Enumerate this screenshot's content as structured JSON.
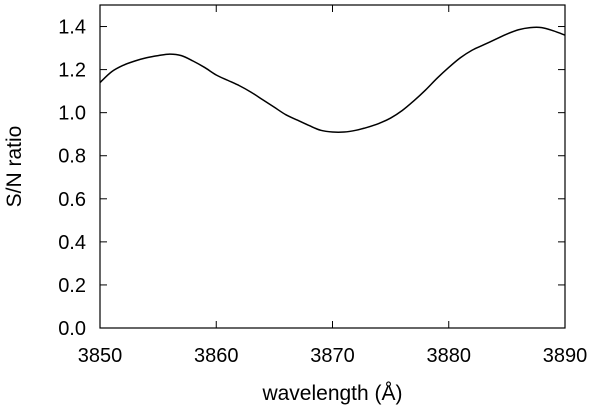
{
  "chart_data": {
    "type": "line",
    "title": "",
    "xlabel": "wavelength (Å)",
    "ylabel": "S/N ratio",
    "xlim": [
      3850,
      3890
    ],
    "ylim": [
      0.0,
      1.5
    ],
    "x_ticks": [
      3850,
      3860,
      3870,
      3880,
      3890
    ],
    "x_tick_labels": [
      "3850",
      "3860",
      "3870",
      "3880",
      "3890"
    ],
    "y_ticks": [
      0.0,
      0.2,
      0.4,
      0.6,
      0.8,
      1.0,
      1.2,
      1.4
    ],
    "y_tick_labels": [
      "0.0",
      "0.2",
      "0.4",
      "0.6",
      "0.8",
      "1.0",
      "1.2",
      "1.4"
    ],
    "grid": false,
    "legend": "none",
    "line_color": "#000000",
    "series": [
      {
        "x": [
          3850,
          3851,
          3852,
          3853,
          3854,
          3855,
          3856,
          3857,
          3858,
          3859,
          3860,
          3861,
          3862,
          3863,
          3864,
          3865,
          3866,
          3867,
          3868,
          3869,
          3870,
          3871,
          3872,
          3873,
          3874,
          3875,
          3876,
          3877,
          3878,
          3879,
          3880,
          3881,
          3882,
          3883,
          3884,
          3885,
          3886,
          3887,
          3888,
          3889,
          3890
        ],
        "y": [
          1.14,
          1.19,
          1.22,
          1.24,
          1.255,
          1.265,
          1.272,
          1.265,
          1.24,
          1.21,
          1.175,
          1.15,
          1.125,
          1.095,
          1.06,
          1.025,
          0.99,
          0.965,
          0.94,
          0.918,
          0.91,
          0.91,
          0.918,
          0.932,
          0.95,
          0.975,
          1.01,
          1.055,
          1.105,
          1.16,
          1.21,
          1.255,
          1.29,
          1.315,
          1.34,
          1.365,
          1.385,
          1.395,
          1.395,
          1.38,
          1.36
        ]
      }
    ]
  }
}
